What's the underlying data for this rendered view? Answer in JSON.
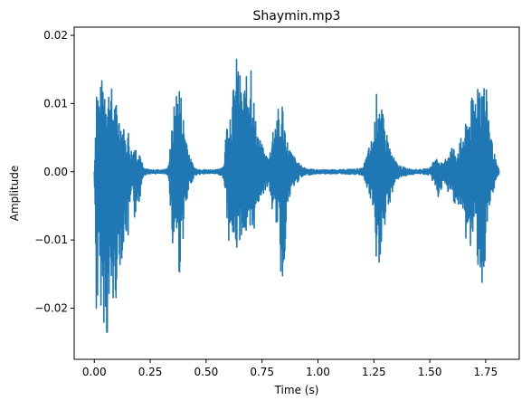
{
  "chart_data": {
    "type": "line",
    "title": "Shaymin.mp3",
    "xlabel": "Time (s)",
    "ylabel": "Amplitude",
    "xlim": [
      -0.09,
      1.9
    ],
    "ylim": [
      -0.0275,
      0.0212
    ],
    "x_ticks": [
      0.0,
      0.25,
      0.5,
      0.75,
      1.0,
      1.25,
      1.5,
      1.75
    ],
    "x_tick_labels": [
      "0.00",
      "0.25",
      "0.50",
      "0.75",
      "1.00",
      "1.25",
      "1.50",
      "1.75"
    ],
    "y_ticks": [
      -0.02,
      -0.01,
      0.0,
      0.01,
      0.02
    ],
    "y_tick_labels": [
      "−0.02",
      "−0.01",
      "0.00",
      "0.01",
      "0.02"
    ],
    "grid": false,
    "color": "#1f77b4",
    "series": [
      {
        "x": [
          0.0,
          0.01,
          0.02,
          0.03,
          0.04,
          0.05,
          0.06,
          0.07,
          0.08,
          0.09,
          0.1,
          0.11,
          0.12,
          0.13,
          0.14,
          0.15,
          0.16,
          0.17,
          0.18,
          0.19,
          0.2,
          0.21,
          0.22,
          0.25,
          0.3,
          0.33,
          0.34,
          0.35,
          0.36,
          0.37,
          0.38,
          0.39,
          0.4,
          0.41,
          0.42,
          0.43,
          0.45,
          0.5,
          0.55,
          0.58,
          0.59,
          0.6,
          0.62,
          0.64,
          0.66,
          0.68,
          0.7,
          0.71,
          0.72,
          0.74,
          0.76,
          0.78,
          0.8,
          0.82,
          0.83,
          0.84,
          0.86,
          0.88,
          0.9,
          0.92,
          0.95,
          1.0,
          1.1,
          1.2,
          1.25,
          1.26,
          1.27,
          1.28,
          1.3,
          1.32,
          1.34,
          1.36,
          1.4,
          1.45,
          1.5,
          1.52,
          1.54,
          1.56,
          1.58,
          1.6,
          1.62,
          1.64,
          1.66,
          1.68,
          1.7,
          1.72,
          1.74,
          1.76,
          1.78,
          1.8,
          1.81
        ],
        "y_max": [
          0.0,
          0.015,
          0.012,
          0.013,
          0.015,
          0.015,
          0.012,
          0.014,
          0.012,
          0.011,
          0.01,
          0.009,
          0.008,
          0.007,
          0.005,
          0.007,
          0.004,
          0.003,
          0.005,
          0.003,
          0.004,
          0.002,
          0.0005,
          0.0003,
          0.0003,
          0.0005,
          0.005,
          0.007,
          0.011,
          0.013,
          0.014,
          0.011,
          0.008,
          0.006,
          0.004,
          0.002,
          0.0005,
          0.0003,
          0.0003,
          0.001,
          0.007,
          0.009,
          0.012,
          0.018,
          0.012,
          0.014,
          0.019,
          0.013,
          0.008,
          0.005,
          0.003,
          0.002,
          0.007,
          0.01,
          0.007,
          0.011,
          0.005,
          0.003,
          0.002,
          0.001,
          0.0005,
          0.0003,
          0.0003,
          0.0005,
          0.006,
          0.011,
          0.014,
          0.01,
          0.007,
          0.004,
          0.002,
          0.001,
          0.0005,
          0.0003,
          0.0005,
          0.002,
          0.002,
          0.001,
          0.003,
          0.004,
          0.003,
          0.005,
          0.007,
          0.01,
          0.012,
          0.016,
          0.014,
          0.011,
          0.004,
          0.001,
          0.0003
        ],
        "y_min": [
          0.0,
          -0.024,
          -0.017,
          -0.02,
          -0.022,
          -0.023,
          -0.026,
          -0.021,
          -0.019,
          -0.023,
          -0.017,
          -0.015,
          -0.013,
          -0.012,
          -0.009,
          -0.011,
          -0.006,
          -0.004,
          -0.008,
          -0.004,
          -0.006,
          -0.002,
          -0.0005,
          -0.0003,
          -0.0003,
          -0.0005,
          -0.005,
          -0.013,
          -0.009,
          -0.01,
          -0.016,
          -0.012,
          -0.009,
          -0.006,
          -0.004,
          -0.002,
          -0.0005,
          -0.0003,
          -0.0003,
          -0.001,
          -0.006,
          -0.01,
          -0.011,
          -0.012,
          -0.009,
          -0.01,
          -0.012,
          -0.01,
          -0.007,
          -0.004,
          -0.003,
          -0.002,
          -0.007,
          -0.008,
          -0.013,
          -0.019,
          -0.007,
          -0.003,
          -0.002,
          -0.001,
          -0.0005,
          -0.0003,
          -0.0003,
          -0.0005,
          -0.006,
          -0.018,
          -0.016,
          -0.012,
          -0.009,
          -0.005,
          -0.002,
          -0.001,
          -0.0005,
          -0.0003,
          -0.0005,
          -0.002,
          -0.004,
          -0.002,
          -0.003,
          -0.004,
          -0.005,
          -0.006,
          -0.01,
          -0.012,
          -0.009,
          -0.015,
          -0.018,
          -0.009,
          -0.004,
          -0.001,
          -0.0003
        ]
      }
    ]
  }
}
